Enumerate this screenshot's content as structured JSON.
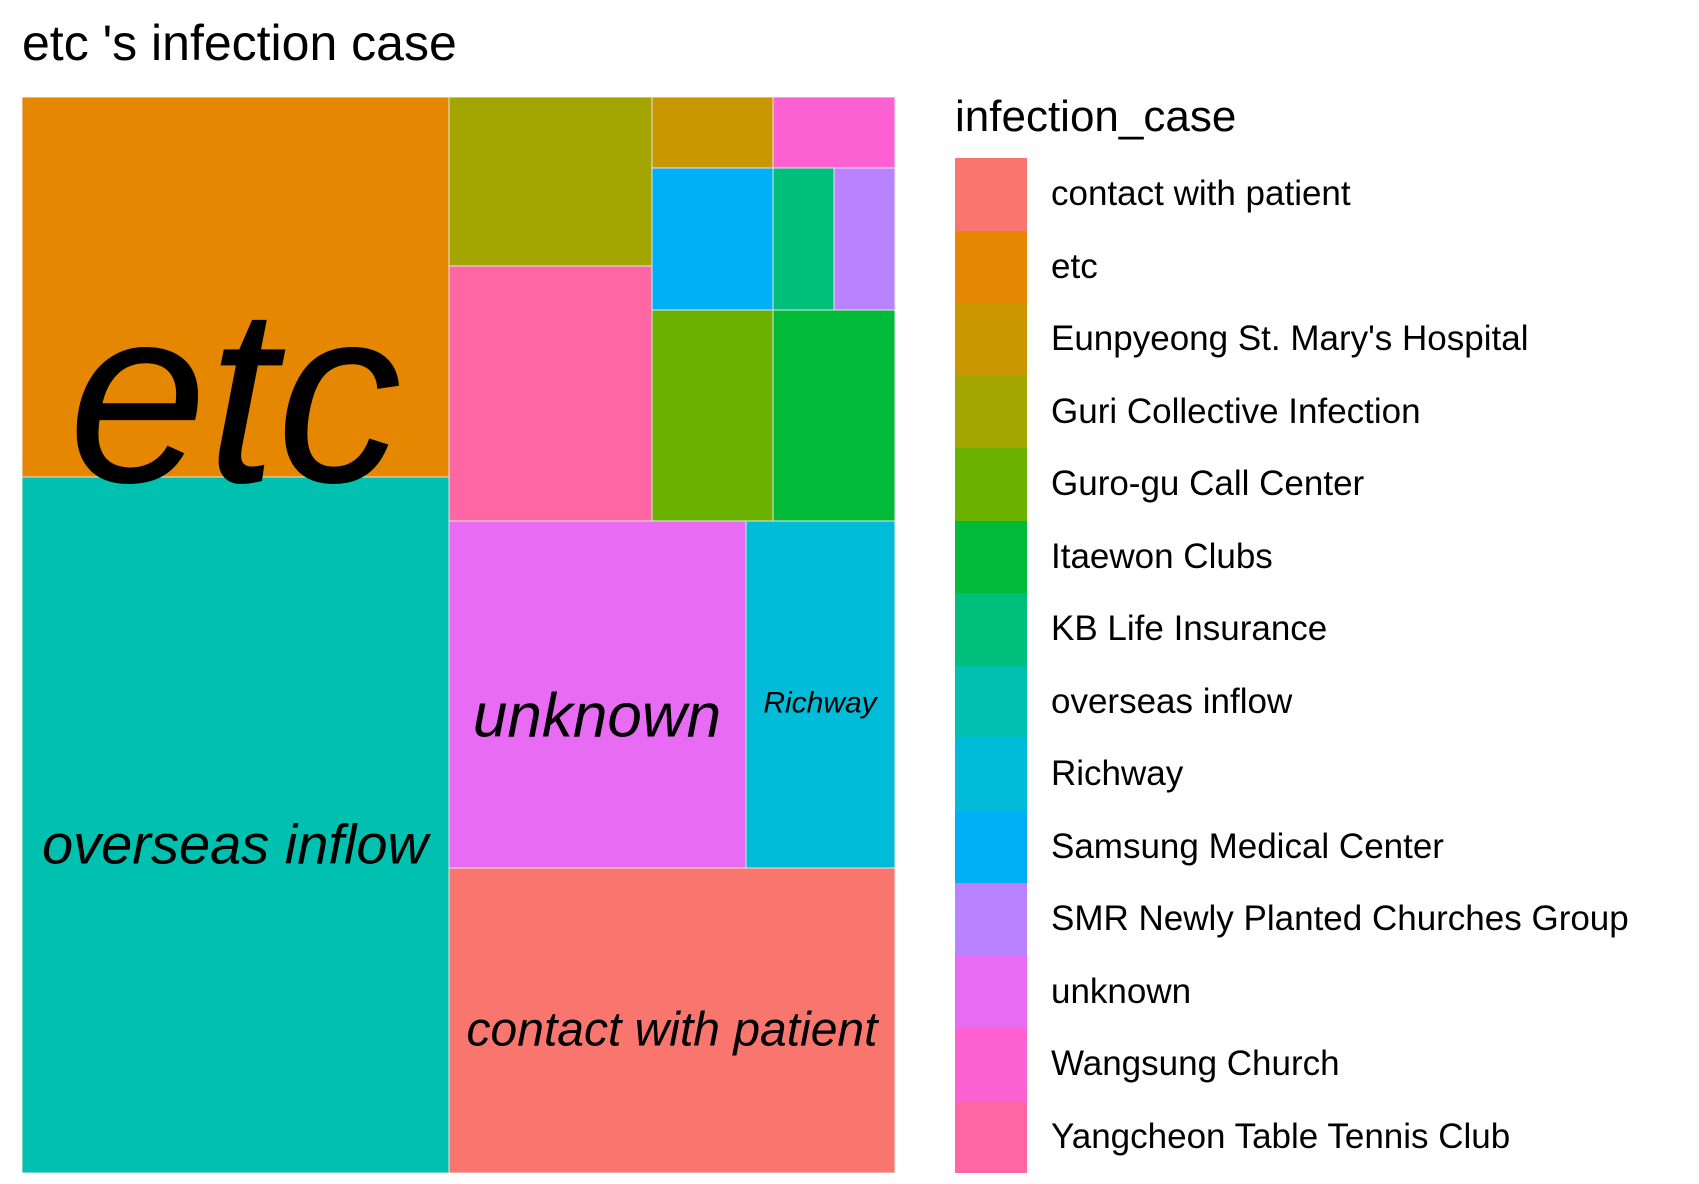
{
  "chart_data": {
    "type": "treemap",
    "title": "etc 's infection case",
    "legend": {
      "title": "infection_case",
      "placement": "right",
      "entries": [
        {
          "label": "contact with patient",
          "color": "#F8766D"
        },
        {
          "label": "etc",
          "color": "#E58700"
        },
        {
          "label": "Eunpyeong St. Mary's Hospital",
          "color": "#C99800"
        },
        {
          "label": "Guri Collective Infection",
          "color": "#A3A500"
        },
        {
          "label": "Guro-gu Call Center",
          "color": "#6BB100"
        },
        {
          "label": "Itaewon Clubs",
          "color": "#00BA38"
        },
        {
          "label": "KB Life Insurance",
          "color": "#00BF7D"
        },
        {
          "label": "overseas inflow",
          "color": "#00C0AF"
        },
        {
          "label": "Richway",
          "color": "#00BCD8"
        },
        {
          "label": "Samsung Medical Center",
          "color": "#00B0F6"
        },
        {
          "label": "SMR Newly Planted Churches Group",
          "color": "#B983FF"
        },
        {
          "label": "unknown",
          "color": "#E76BF3"
        },
        {
          "label": "Wangsung Church",
          "color": "#FD61D1"
        },
        {
          "label": "Yangcheon Table Tennis Club",
          "color": "#FF67A4"
        }
      ]
    },
    "series": [
      {
        "name": "overseas inflow",
        "value": 303,
        "label": "overseas inflow"
      },
      {
        "name": "etc",
        "value": 164,
        "label": "etc"
      },
      {
        "name": "contact with patient",
        "value": 138,
        "label": "contact with patient"
      },
      {
        "name": "unknown",
        "value": 103,
        "label": "unknown"
      },
      {
        "name": "Richway",
        "value": 51,
        "label": "Richway"
      },
      {
        "name": "Yangcheon Table Tennis Club",
        "value": 52,
        "label": ""
      },
      {
        "name": "Guri Collective Infection",
        "value": 34,
        "label": ""
      },
      {
        "name": "Guro-gu Call Center",
        "value": 26,
        "label": ""
      },
      {
        "name": "Itaewon Clubs",
        "value": 26,
        "label": ""
      },
      {
        "name": "Samsung Medical Center",
        "value": 17,
        "label": ""
      },
      {
        "name": "Eunpyeong St. Mary's Hospital",
        "value": 9,
        "label": ""
      },
      {
        "name": "Wangsung Church",
        "value": 9,
        "label": ""
      },
      {
        "name": "KB Life Insurance",
        "value": 8,
        "label": ""
      },
      {
        "name": "SMR Newly Planted Churches Group",
        "value": 8,
        "label": ""
      }
    ]
  }
}
